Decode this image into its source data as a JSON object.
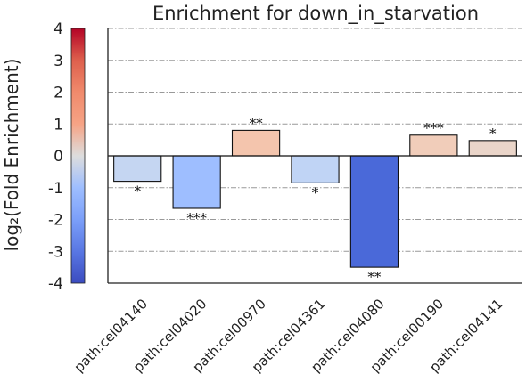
{
  "chart_data": {
    "type": "bar",
    "title": "Enrichment for down_in_starvation",
    "ylabel": "log₂(Fold Enrichment)",
    "xlabel": "",
    "ylim": [
      -4,
      4
    ],
    "yticks": [
      "-4",
      "-3",
      "-2",
      "-1",
      "0",
      "1",
      "2",
      "3",
      "4"
    ],
    "grid": "horizontal dash-dot",
    "colorbar": {
      "range": [
        -4,
        4
      ],
      "ticks": [
        "-4",
        "-3",
        "-2",
        "-1",
        "0",
        "1",
        "2",
        "3",
        "4"
      ],
      "colormap": "coolwarm"
    },
    "categories": [
      "path:cel04140",
      "path:cel04020",
      "path:cel00970",
      "path:cel04361",
      "path:cel04080",
      "path:cel00190",
      "path:cel04141"
    ],
    "values": [
      -0.8,
      -1.65,
      0.8,
      -0.85,
      -3.5,
      0.65,
      0.48
    ],
    "significance": [
      "*",
      "***",
      "**",
      "*",
      "**",
      "***",
      "*"
    ],
    "colors": [
      "#c5d6f2",
      "#9ebeff",
      "#f4c5ad",
      "#c0d4f5",
      "#4a69d9",
      "#f1cdba",
      "#ead5c9"
    ]
  }
}
